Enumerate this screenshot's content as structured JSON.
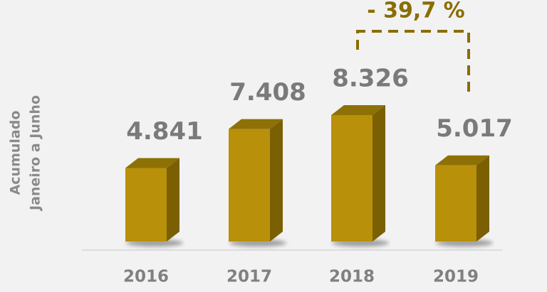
{
  "chart_data": {
    "type": "bar3d",
    "ylabel": [
      "Acumulado",
      "Janeiro a Junho"
    ],
    "categories": [
      "2016",
      "2017",
      "2018",
      "2019"
    ],
    "values": [
      4841,
      7408,
      8326,
      5017
    ],
    "value_labels": [
      "4.841",
      "7.408",
      "8.326",
      "5.017"
    ],
    "color": "#b8900a",
    "annotation": "- 39,7 %"
  }
}
